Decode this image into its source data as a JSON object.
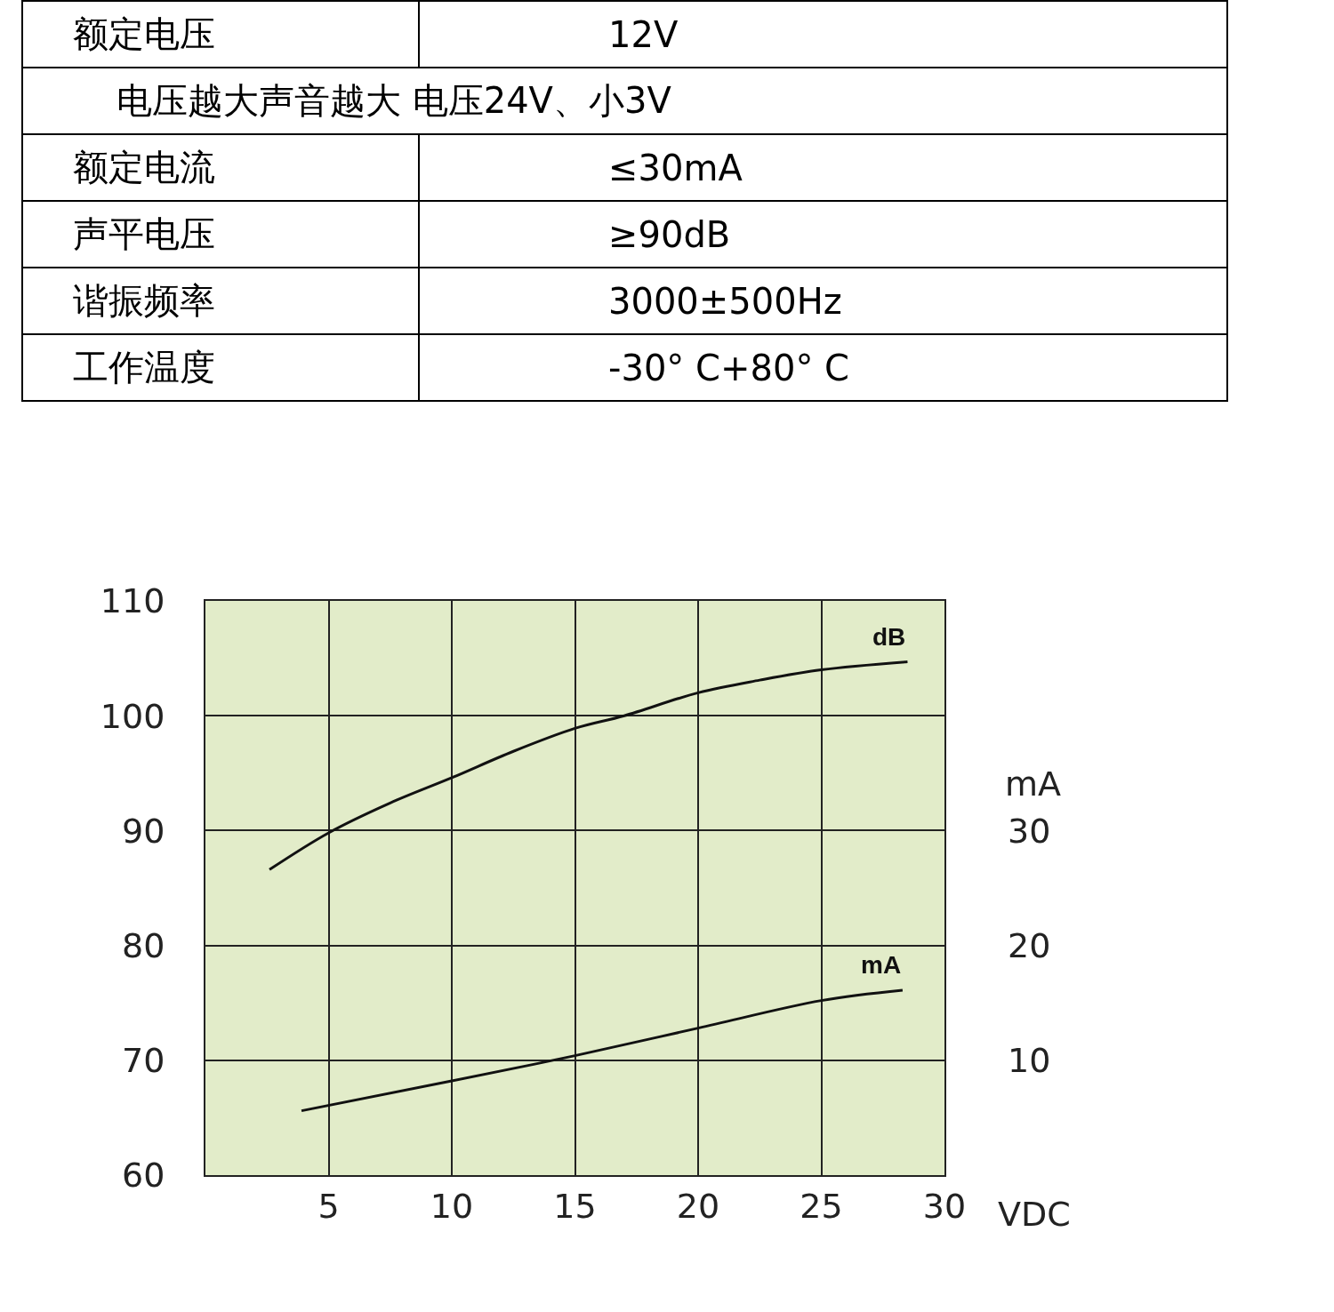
{
  "chart_data": [
    {
      "type": "other",
      "cell_labels": [
        [
          "额定电压",
          "12V"
        ],
        [
          "电压越大声音越大 电压24V、小3V"
        ],
        [
          "额定电流",
          "≤30mA"
        ],
        [
          "声平电压",
          "≥90dB"
        ],
        [
          "谐振频率",
          "3000±500Hz"
        ],
        [
          "工作温度",
          "-30° C+80° C"
        ]
      ]
    },
    {
      "type": "line",
      "xlabel": "VDC",
      "y2label": "mA",
      "xlim": [
        0,
        30
      ],
      "xticks": [
        5,
        10,
        15,
        20,
        25,
        30
      ],
      "ylim": [
        60,
        110
      ],
      "yticks": [
        60,
        70,
        80,
        90,
        100,
        110
      ],
      "y2lim": [
        0,
        50
      ],
      "y2ticks": [
        10,
        20,
        30
      ],
      "grid": true,
      "series": [
        {
          "name": "dB",
          "color": "#111111",
          "x": [
            2.6,
            5,
            7.5,
            10,
            12.5,
            15,
            17,
            20,
            22.5,
            25,
            28.5
          ],
          "values": [
            86.6,
            89.8,
            92.4,
            94.6,
            96.9,
            98.9,
            100,
            102,
            103.1,
            104,
            104.7
          ]
        },
        {
          "name": "mA",
          "color": "#111111",
          "axis": "y2",
          "x": [
            3.9,
            10,
            15,
            20,
            25,
            28.3
          ],
          "values": [
            5.6,
            8.2,
            10.4,
            12.8,
            15.2,
            16.1
          ]
        }
      ]
    }
  ]
}
